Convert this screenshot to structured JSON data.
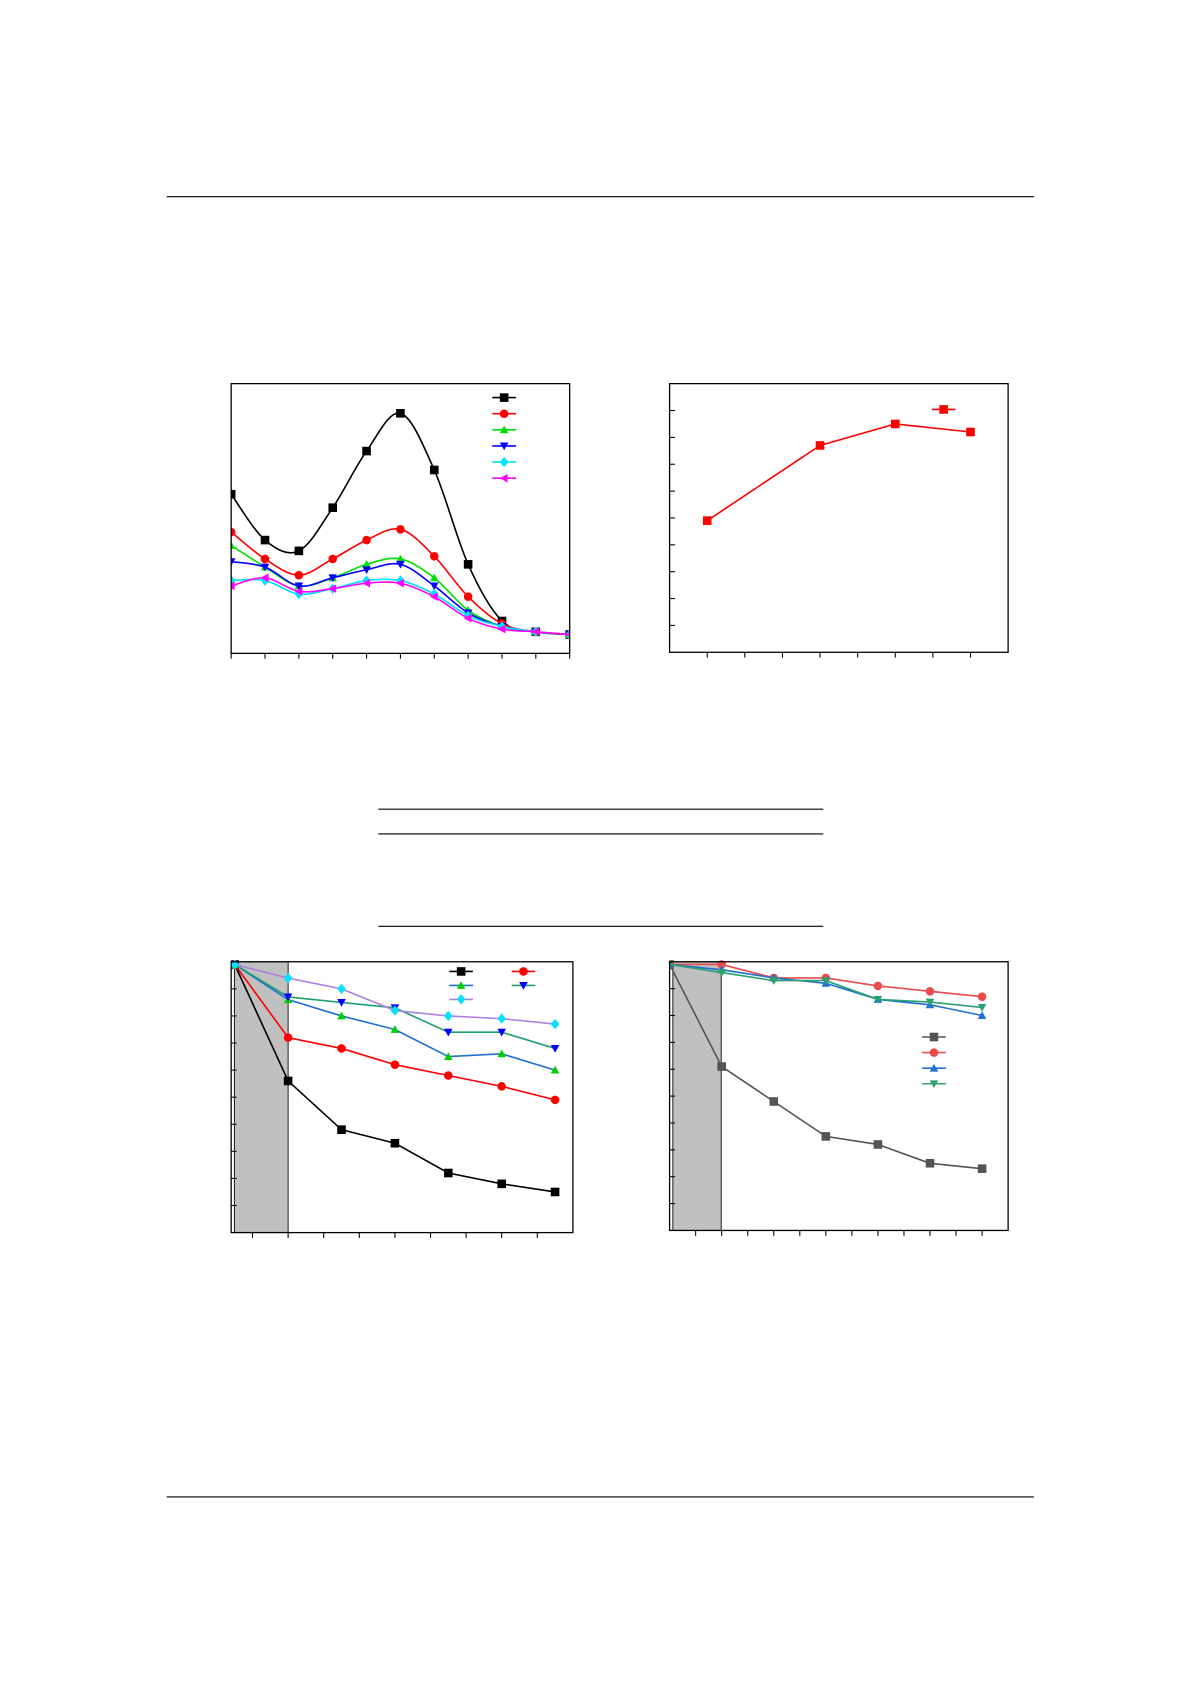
{
  "chart_data": [
    {
      "type": "line",
      "smooth": true,
      "x": [
        0,
        1,
        2,
        3,
        4,
        5,
        6,
        7,
        8,
        9,
        10
      ],
      "xlim": [
        0,
        10
      ],
      "ylim": [
        0,
        10
      ],
      "xticks": [
        0,
        1,
        2,
        3,
        4,
        5,
        6,
        7,
        8,
        9,
        10
      ],
      "series": [
        {
          "color": "#000000",
          "marker": "square",
          "values": [
            5.9,
            4.2,
            3.8,
            5.4,
            7.5,
            8.9,
            6.8,
            3.3,
            1.2,
            0.8,
            0.7
          ]
        },
        {
          "color": "#ff0000",
          "marker": "circle",
          "values": [
            4.5,
            3.5,
            2.9,
            3.5,
            4.2,
            4.6,
            3.6,
            2.1,
            1.1,
            0.8,
            0.7
          ]
        },
        {
          "color": "#00e000",
          "marker": "triangle",
          "values": [
            4.0,
            3.2,
            2.5,
            2.8,
            3.3,
            3.5,
            2.8,
            1.6,
            1.0,
            0.8,
            0.7
          ]
        },
        {
          "color": "#0000ff",
          "marker": "triangle-down",
          "values": [
            3.4,
            3.2,
            2.5,
            2.8,
            3.1,
            3.3,
            2.5,
            1.5,
            1.0,
            0.8,
            0.7
          ]
        },
        {
          "color": "#00e0ff",
          "marker": "diamond",
          "values": [
            2.7,
            2.7,
            2.2,
            2.4,
            2.7,
            2.7,
            2.2,
            1.4,
            1.0,
            0.8,
            0.7
          ]
        },
        {
          "color": "#ff00ff",
          "marker": "triangle-left",
          "values": [
            2.5,
            2.8,
            2.3,
            2.4,
            2.6,
            2.6,
            2.1,
            1.3,
            0.9,
            0.8,
            0.7
          ]
        }
      ]
    },
    {
      "type": "line",
      "x": [
        0,
        3,
        5,
        7
      ],
      "xlim": [
        -1,
        8
      ],
      "ylim": [
        0,
        10
      ],
      "xticks": [
        0,
        1,
        2,
        3,
        4,
        5,
        6,
        7
      ],
      "yticks": [
        1,
        2,
        3,
        4,
        5,
        6,
        7,
        8,
        9
      ],
      "series": [
        {
          "color": "#ff0000",
          "marker": "square",
          "values": [
            4.9,
            7.7,
            8.5,
            8.2
          ]
        }
      ]
    },
    {
      "type": "line",
      "x": [
        -3,
        0,
        3,
        6,
        9,
        12,
        15
      ],
      "xlim": [
        -3.2,
        16
      ],
      "ylim": [
        0,
        10
      ],
      "xticks": [
        -2,
        0,
        2,
        4,
        6,
        8,
        10,
        12,
        14
      ],
      "yticks": [
        1,
        2,
        3,
        4,
        5,
        6,
        7,
        8,
        9
      ],
      "series": [
        {
          "color": "#000000",
          "marker": "square",
          "values": [
            9.9,
            5.6,
            3.8,
            3.3,
            2.2,
            1.8,
            1.5
          ]
        },
        {
          "color": "#ff0000",
          "marker": "circle",
          "values": [
            9.9,
            7.2,
            6.8,
            6.2,
            5.8,
            5.4,
            4.9
          ]
        },
        {
          "color": "#00d000",
          "line_color": "#1f70d0",
          "marker": "triangle",
          "values": [
            9.9,
            8.6,
            8.0,
            7.5,
            6.5,
            6.6,
            6.0
          ]
        },
        {
          "color": "#0000ff",
          "line_color": "#20a070",
          "marker": "triangle-down",
          "values": [
            9.9,
            8.7,
            8.5,
            8.3,
            7.4,
            7.4,
            6.8
          ]
        },
        {
          "color": "#00e0ff",
          "line_color": "#b07fe0",
          "marker": "diamond",
          "values": [
            9.9,
            9.4,
            9.0,
            8.2,
            8.0,
            7.9,
            7.7
          ]
        }
      ]
    },
    {
      "type": "line",
      "x": [
        -2,
        0,
        2,
        4,
        6,
        8,
        10
      ],
      "xlim": [
        -2,
        11
      ],
      "ylim": [
        0,
        10
      ],
      "xticks": [
        -1,
        0,
        1,
        2,
        3,
        4,
        5,
        6,
        7,
        8,
        9,
        10
      ],
      "yticks": [
        1,
        2,
        3,
        4,
        5,
        6,
        7,
        8,
        9
      ],
      "series": [
        {
          "color": "#555555",
          "marker": "square",
          "values": [
            9.9,
            6.1,
            4.8,
            3.5,
            3.2,
            2.5,
            2.3
          ]
        },
        {
          "color": "#e84c4c",
          "marker": "circle",
          "values": [
            9.9,
            9.9,
            9.4,
            9.4,
            9.1,
            8.9,
            8.7
          ]
        },
        {
          "color": "#1f70d0",
          "marker": "triangle",
          "values": [
            9.9,
            9.7,
            9.4,
            9.2,
            8.6,
            8.4,
            8.0
          ]
        },
        {
          "color": "#2ca070",
          "marker": "triangle-down",
          "values": [
            9.9,
            9.6,
            9.3,
            9.3,
            8.6,
            8.5,
            8.3
          ]
        }
      ]
    }
  ]
}
